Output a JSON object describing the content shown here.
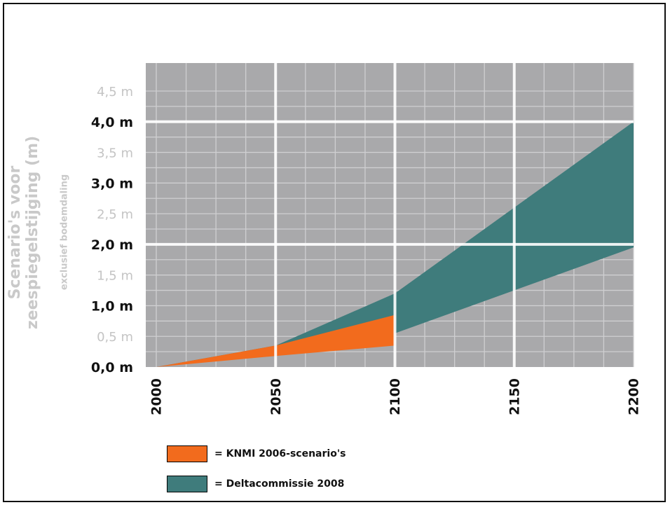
{
  "chart_data": {
    "type": "area",
    "x_ticks": [
      2000,
      2050,
      2100,
      2150,
      2200
    ],
    "x_tick_labels": [
      "2000",
      "2050",
      "2100",
      "2150",
      "2200"
    ],
    "xlim": [
      2000,
      2200
    ],
    "ylim": [
      0,
      4.5
    ],
    "y_ticks": [
      0.0,
      0.5,
      1.0,
      1.5,
      2.0,
      2.5,
      3.0,
      3.5,
      4.0,
      4.5
    ],
    "y_tick_labels": [
      "0,0 m",
      "0,5 m",
      "1,0 m",
      "1,5 m",
      "2,0 m",
      "2,5 m",
      "3,0 m",
      "3,5 m",
      "4,0 m",
      "4,5 m"
    ],
    "y_tick_bold": [
      true,
      false,
      true,
      false,
      true,
      false,
      true,
      false,
      true,
      false
    ],
    "ylabel_line1": "Scenario's voor",
    "ylabel_line2": "zeespiegelstijging (m)",
    "ylabel_note": "exclusief bodemdaling",
    "grid": true,
    "series": [
      {
        "name": "= Deltacommissie 2008",
        "color": "#3f7c7c",
        "x": [
          2000,
          2050,
          2100,
          2200
        ],
        "lower": [
          0.0,
          0.3,
          0.55,
          1.95
        ],
        "upper": [
          0.0,
          0.35,
          1.2,
          4.0
        ]
      },
      {
        "name": "= KNMI 2006-scenario's",
        "color": "#f26b1d",
        "x": [
          2000,
          2050,
          2100
        ],
        "lower": [
          0.0,
          0.18,
          0.35
        ],
        "upper": [
          0.0,
          0.35,
          0.85
        ]
      }
    ]
  }
}
